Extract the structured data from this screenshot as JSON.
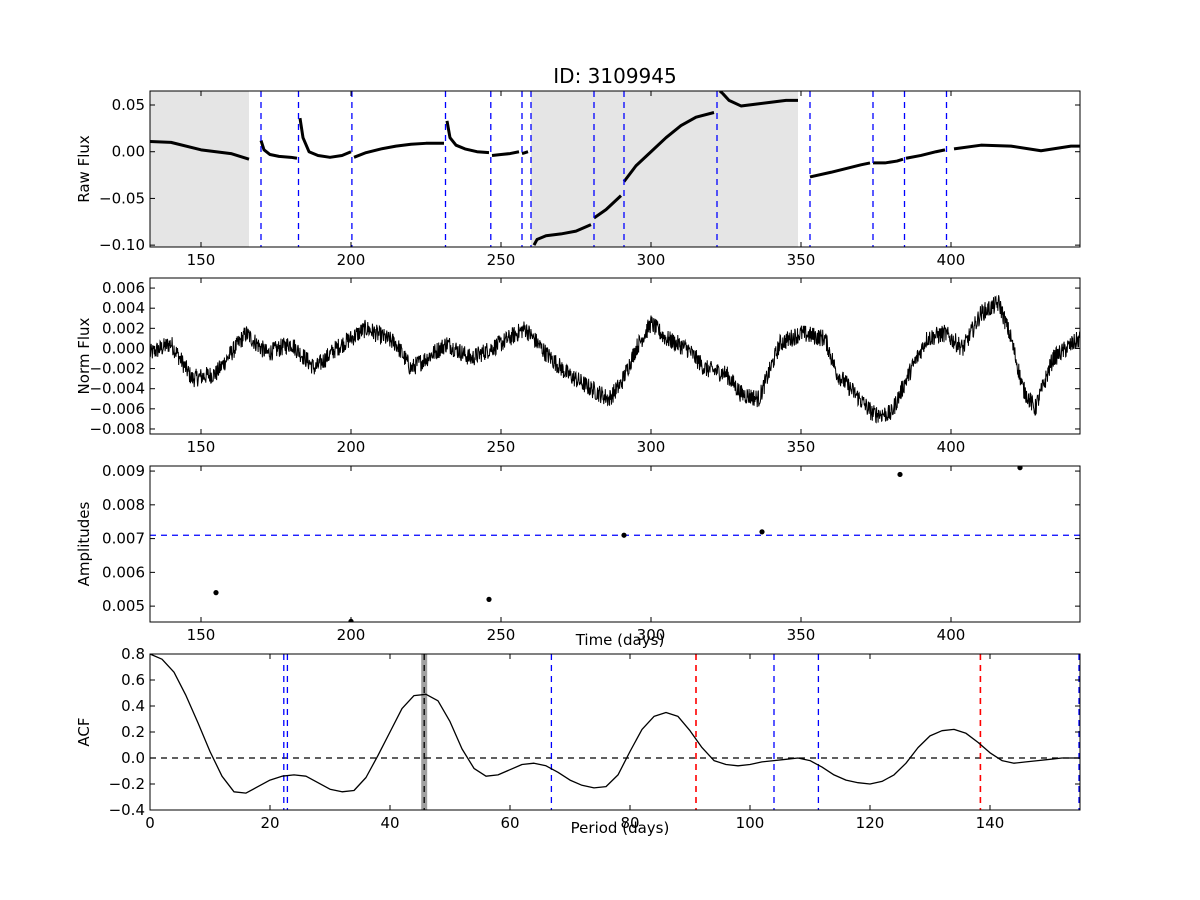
{
  "title": "ID: 3109945",
  "colors": {
    "background": "#ffffff",
    "line": "#000000",
    "vline_blue": "#0000ff",
    "vline_red": "#ff0000",
    "shade": "#e5e5e5",
    "best_period_band": "#808080"
  },
  "chart_data": [
    {
      "type": "line",
      "panel": "raw-flux",
      "ylabel": "Raw Flux",
      "xlim": [
        133,
        443
      ],
      "ylim": [
        -0.102,
        0.065
      ],
      "xticks": [
        150,
        200,
        250,
        300,
        350,
        400
      ],
      "yticks": [
        "0.05",
        "0.00",
        "−0.05",
        "−0.10"
      ],
      "ytick_values": [
        0.05,
        0.0,
        -0.05,
        -0.1
      ],
      "shaded_spans": [
        [
          133,
          166
        ],
        [
          260,
          349
        ]
      ],
      "vlines_blue_dashed": [
        170,
        182.5,
        200.3,
        231.5,
        246.6,
        257,
        260,
        281,
        291,
        322,
        353,
        374,
        384.5,
        398.5
      ],
      "segments": [
        {
          "x": [
            133,
            140,
            150,
            160,
            166
          ],
          "y": [
            0.011,
            0.01,
            0.002,
            -0.002,
            -0.008
          ]
        },
        {
          "x": [
            170,
            171,
            173,
            176,
            180,
            182
          ],
          "y": [
            0.012,
            0.002,
            -0.003,
            -0.005,
            -0.006,
            -0.007
          ]
        },
        {
          "x": [
            183,
            184,
            186,
            189,
            193,
            197,
            200
          ],
          "y": [
            0.036,
            0.015,
            0.0,
            -0.004,
            -0.006,
            -0.004,
            0.0
          ]
        },
        {
          "x": [
            201,
            205,
            210,
            215,
            220,
            225,
            231
          ],
          "y": [
            -0.006,
            -0.001,
            0.003,
            0.006,
            0.008,
            0.009,
            0.009
          ]
        },
        {
          "x": [
            232,
            233,
            235,
            238,
            242,
            246
          ],
          "y": [
            0.033,
            0.015,
            0.007,
            0.003,
            0.0,
            -0.001
          ]
        },
        {
          "x": [
            247,
            250,
            253,
            256
          ],
          "y": [
            -0.004,
            -0.003,
            -0.002,
            0.0
          ]
        },
        {
          "x": [
            257,
            258,
            259
          ],
          "y": [
            -0.002,
            -0.001,
            0.0
          ]
        },
        {
          "x": [
            261,
            262,
            265,
            270,
            275,
            280
          ],
          "y": [
            -0.1,
            -0.094,
            -0.09,
            -0.088,
            -0.085,
            -0.078
          ]
        },
        {
          "x": [
            281,
            285,
            290
          ],
          "y": [
            -0.071,
            -0.062,
            -0.047
          ]
        },
        {
          "x": [
            291,
            295,
            300,
            305,
            310,
            315,
            321
          ],
          "y": [
            -0.032,
            -0.015,
            0.0,
            0.015,
            0.028,
            0.037,
            0.042
          ]
        },
        {
          "x": [
            323,
            324,
            326,
            330,
            335,
            340,
            345,
            349
          ],
          "y": [
            0.065,
            0.062,
            0.055,
            0.049,
            0.051,
            0.053,
            0.055,
            0.055
          ]
        },
        {
          "x": [
            353,
            360,
            365,
            370,
            373
          ],
          "y": [
            -0.027,
            -0.022,
            -0.018,
            -0.014,
            -0.012
          ]
        },
        {
          "x": [
            374,
            378,
            382,
            384
          ],
          "y": [
            -0.012,
            -0.012,
            -0.01,
            -0.008
          ]
        },
        {
          "x": [
            385,
            390,
            395,
            398
          ],
          "y": [
            -0.007,
            -0.004,
            0.0,
            0.002
          ]
        },
        {
          "x": [
            401,
            410,
            420,
            430,
            440,
            443
          ],
          "y": [
            0.003,
            0.007,
            0.006,
            0.001,
            0.006,
            0.006
          ]
        }
      ]
    },
    {
      "type": "line",
      "panel": "norm-flux",
      "ylabel": "Norm Flux",
      "xlim": [
        133,
        443
      ],
      "ylim": [
        -0.0085,
        0.007
      ],
      "xticks": [
        150,
        200,
        250,
        300,
        350,
        400
      ],
      "yticks": [
        "0.006",
        "0.004",
        "0.002",
        "0.000",
        "−0.002",
        "−0.004",
        "−0.006",
        "−0.008"
      ],
      "ytick_values": [
        0.006,
        0.004,
        0.002,
        0.0,
        -0.002,
        -0.004,
        -0.006,
        -0.008
      ],
      "trend": {
        "x": [
          133,
          140,
          147,
          155,
          165,
          172,
          180,
          188,
          195,
          205,
          215,
          220,
          225,
          232,
          240,
          250,
          258,
          265,
          272,
          280,
          286,
          290,
          295,
          300,
          305,
          312,
          318,
          325,
          330,
          336,
          343,
          350,
          358,
          362,
          368,
          374,
          380,
          386,
          392,
          398,
          404,
          410,
          416,
          420,
          424,
          428,
          434,
          443
        ],
        "y": [
          -0.0005,
          0.0005,
          -0.003,
          -0.0025,
          0.0015,
          -0.0005,
          0.0005,
          -0.002,
          0.0,
          0.002,
          0.0005,
          -0.002,
          -0.001,
          0.0005,
          -0.001,
          0.0005,
          0.002,
          -0.0005,
          -0.0025,
          -0.004,
          -0.005,
          -0.0035,
          0.0,
          0.0025,
          0.001,
          0.0,
          -0.002,
          -0.0025,
          -0.0045,
          -0.005,
          0.0005,
          0.0015,
          0.001,
          -0.0025,
          -0.0045,
          -0.0065,
          -0.0065,
          -0.0025,
          0.001,
          0.0015,
          0.0,
          0.0035,
          0.0045,
          0.001,
          -0.004,
          -0.006,
          -0.001,
          0.001
        ]
      },
      "noise_amplitude": 0.0009
    },
    {
      "type": "scatter",
      "panel": "amplitudes",
      "ylabel": "Amplitudes",
      "xlabel": "Time (days)",
      "xlim": [
        133,
        443
      ],
      "ylim": [
        0.00453,
        0.00915
      ],
      "xticks": [
        150,
        200,
        250,
        300,
        350,
        400
      ],
      "yticks": [
        "0.009",
        "0.008",
        "0.007",
        "0.006",
        "0.005"
      ],
      "ytick_values": [
        0.009,
        0.008,
        0.007,
        0.006,
        0.005
      ],
      "hline_blue_dashed": 0.0071,
      "points": [
        {
          "x": 155,
          "y": 0.0054
        },
        {
          "x": 200,
          "y": 0.00455
        },
        {
          "x": 246,
          "y": 0.0052
        },
        {
          "x": 291,
          "y": 0.0071
        },
        {
          "x": 337,
          "y": 0.0072
        },
        {
          "x": 383,
          "y": 0.0089
        },
        {
          "x": 423,
          "y": 0.0091
        }
      ]
    },
    {
      "type": "line",
      "panel": "acf",
      "ylabel": "ACF",
      "xlabel": "Period (days)",
      "xlim": [
        0,
        155
      ],
      "ylim": [
        -0.4,
        0.8
      ],
      "xticks": [
        0,
        20,
        40,
        60,
        80,
        100,
        120,
        140
      ],
      "yticks": [
        "0.8",
        "0.6",
        "0.4",
        "0.2",
        "0.0",
        "−0.2",
        "−0.4"
      ],
      "ytick_values": [
        0.8,
        0.6,
        0.4,
        0.2,
        0.0,
        -0.2,
        -0.4
      ],
      "hline_black_dashed": 0.0,
      "best_period": 45.7,
      "best_period_band": [
        45.2,
        46.2
      ],
      "vlines_blue_dashed": [
        22.3,
        22.9,
        66.9,
        104,
        111.4,
        155
      ],
      "vlines_red_dashed": [
        91,
        138.4
      ],
      "x": [
        0,
        2,
        4,
        6,
        8,
        10,
        12,
        14,
        16,
        18,
        20,
        22,
        24,
        26,
        28,
        30,
        32,
        34,
        36,
        38,
        40,
        42,
        44,
        46,
        48,
        50,
        52,
        54,
        56,
        58,
        60,
        62,
        64,
        66,
        68,
        70,
        72,
        74,
        76,
        78,
        80,
        82,
        84,
        86,
        88,
        90,
        92,
        94,
        96,
        98,
        100,
        102,
        104,
        106,
        108,
        110,
        112,
        114,
        116,
        118,
        120,
        122,
        124,
        126,
        128,
        130,
        132,
        134,
        136,
        138,
        140,
        142,
        144,
        146,
        148,
        150,
        152,
        155
      ],
      "y": [
        0.8,
        0.76,
        0.66,
        0.48,
        0.27,
        0.05,
        -0.14,
        -0.26,
        -0.27,
        -0.22,
        -0.17,
        -0.14,
        -0.13,
        -0.14,
        -0.19,
        -0.24,
        -0.26,
        -0.25,
        -0.15,
        0.02,
        0.2,
        0.38,
        0.48,
        0.49,
        0.44,
        0.28,
        0.07,
        -0.08,
        -0.14,
        -0.13,
        -0.09,
        -0.05,
        -0.04,
        -0.06,
        -0.11,
        -0.17,
        -0.21,
        -0.23,
        -0.22,
        -0.13,
        0.05,
        0.22,
        0.32,
        0.35,
        0.32,
        0.21,
        0.08,
        -0.02,
        -0.05,
        -0.06,
        -0.05,
        -0.03,
        -0.02,
        -0.01,
        0.0,
        -0.02,
        -0.07,
        -0.13,
        -0.17,
        -0.19,
        -0.2,
        -0.18,
        -0.13,
        -0.04,
        0.08,
        0.17,
        0.21,
        0.22,
        0.19,
        0.12,
        0.04,
        -0.02,
        -0.04,
        -0.03,
        -0.02,
        -0.01,
        0.0,
        0.0
      ]
    }
  ]
}
